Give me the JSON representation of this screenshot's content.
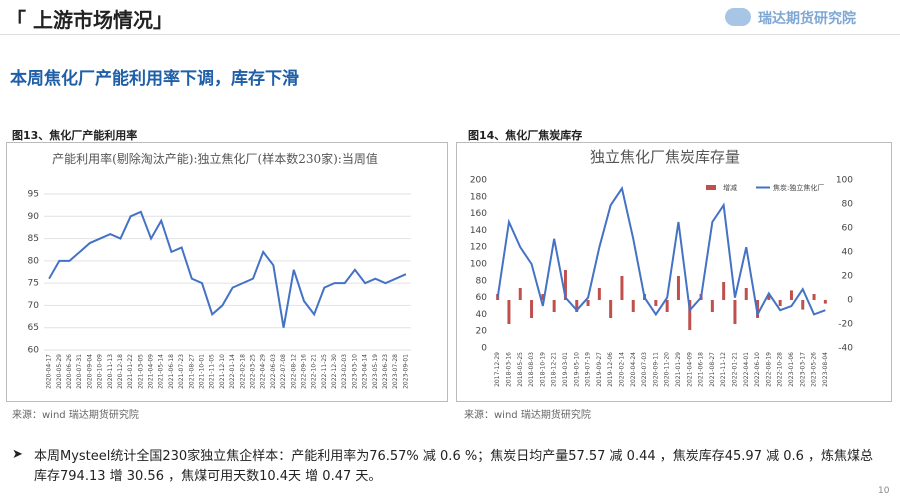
{
  "header": {
    "title": "「 上游市场情况」",
    "logo": "瑞达期货研究院"
  },
  "subtitle": "本周焦化厂产能利用率下调，库存下滑",
  "figures": [
    {
      "caption": "图13、焦化厂产能利用率",
      "source": "来源：wind   瑞达期货研究院"
    },
    {
      "caption": "图14、焦化厂焦炭库存",
      "source": "来源：wind   瑞达期货研究院"
    }
  ],
  "chart_data": [
    {
      "type": "line",
      "title": "产能利用率(剔除淘汰产能):独立焦化厂(样本数230家):当周值",
      "color": "#4472c4",
      "grid": true,
      "categories": [
        "2020-04-17",
        "2020-05-29",
        "2020-06-26",
        "2020-07-31",
        "2020-09-04",
        "2020-10-09",
        "2020-11-13",
        "2020-12-18",
        "2021-01-22",
        "2021-03-05",
        "2021-04-09",
        "2021-05-14",
        "2021-06-18",
        "2021-07-23",
        "2021-08-27",
        "2021-10-01",
        "2021-11-05",
        "2021-12-10",
        "2022-01-14",
        "2022-02-18",
        "2022-03-25",
        "2022-04-29",
        "2022-06-03",
        "2022-07-08",
        "2022-08-12",
        "2022-09-16",
        "2022-10-21",
        "2022-11-25",
        "2022-12-30",
        "2023-02-03",
        "2023-03-10",
        "2023-04-14",
        "2023-05-19",
        "2023-06-23",
        "2023-07-28",
        "2023-09-01"
      ],
      "values": [
        76,
        80,
        80,
        82,
        84,
        85,
        86,
        85,
        90,
        91,
        85,
        89,
        82,
        83,
        76,
        75,
        68,
        70,
        74,
        75,
        76,
        82,
        79,
        65,
        78,
        71,
        68,
        74,
        75,
        75,
        78,
        75,
        76,
        75,
        76,
        77
      ],
      "ylim": [
        60,
        95
      ],
      "yticks": [
        60,
        65,
        70,
        75,
        80,
        85,
        90,
        95
      ]
    },
    {
      "type": "combo",
      "title": "独立焦化厂焦炭库存量",
      "grid": false,
      "legend": "top-right",
      "categories": [
        "2017-12-29",
        "2018-03-16",
        "2018-05-25",
        "2018-08-03",
        "2018-10-19",
        "2018-12-21",
        "2019-03-01",
        "2019-05-10",
        "2019-07-19",
        "2019-09-27",
        "2019-12-06",
        "2020-02-14",
        "2020-04-24",
        "2020-07-03",
        "2020-09-11",
        "2020-11-20",
        "2021-01-29",
        "2021-04-09",
        "2021-06-18",
        "2021-08-27",
        "2021-11-12",
        "2022-01-21",
        "2022-04-01",
        "2022-06-10",
        "2022-08-19",
        "2022-10-28",
        "2023-01-06",
        "2023-03-17",
        "2023-05-26",
        "2023-08-04"
      ],
      "series": [
        {
          "name": "增减",
          "color": "#c0504d",
          "axis": "y2",
          "values": [
            5,
            -20,
            10,
            -15,
            5,
            -10,
            25,
            -10,
            -5,
            10,
            -15,
            20,
            -10,
            5,
            -5,
            -10,
            20,
            -25,
            5,
            -10,
            15,
            -20,
            10,
            -15,
            5,
            -5,
            8,
            -8,
            5,
            -3
          ]
        },
        {
          "name": "焦炭:独立焦化厂",
          "color": "#4472c4",
          "values": [
            60,
            150,
            120,
            100,
            50,
            130,
            60,
            45,
            60,
            120,
            170,
            190,
            130,
            60,
            40,
            60,
            150,
            45,
            60,
            150,
            170,
            60,
            120,
            40,
            65,
            45,
            50,
            70,
            40,
            45
          ]
        }
      ],
      "ylim": [
        0,
        200
      ],
      "yticks": [
        0,
        20,
        40,
        60,
        80,
        100,
        120,
        140,
        160,
        180,
        200
      ],
      "y2lim": [
        -40,
        100
      ],
      "y2ticks": [
        -40,
        -20,
        0,
        20,
        40,
        60,
        80,
        100
      ]
    }
  ],
  "note": "本周Mysteel统计全国230家独立焦企样本：产能利用率为76.57% 减 0.6 %；焦炭日均产量57.57 减 0.44 ，焦炭库存45.97 减 0.6 ，炼焦煤总库存794.13 增 30.56 ，焦煤可用天数10.4天 增 0.47 天。",
  "page_number": "10"
}
